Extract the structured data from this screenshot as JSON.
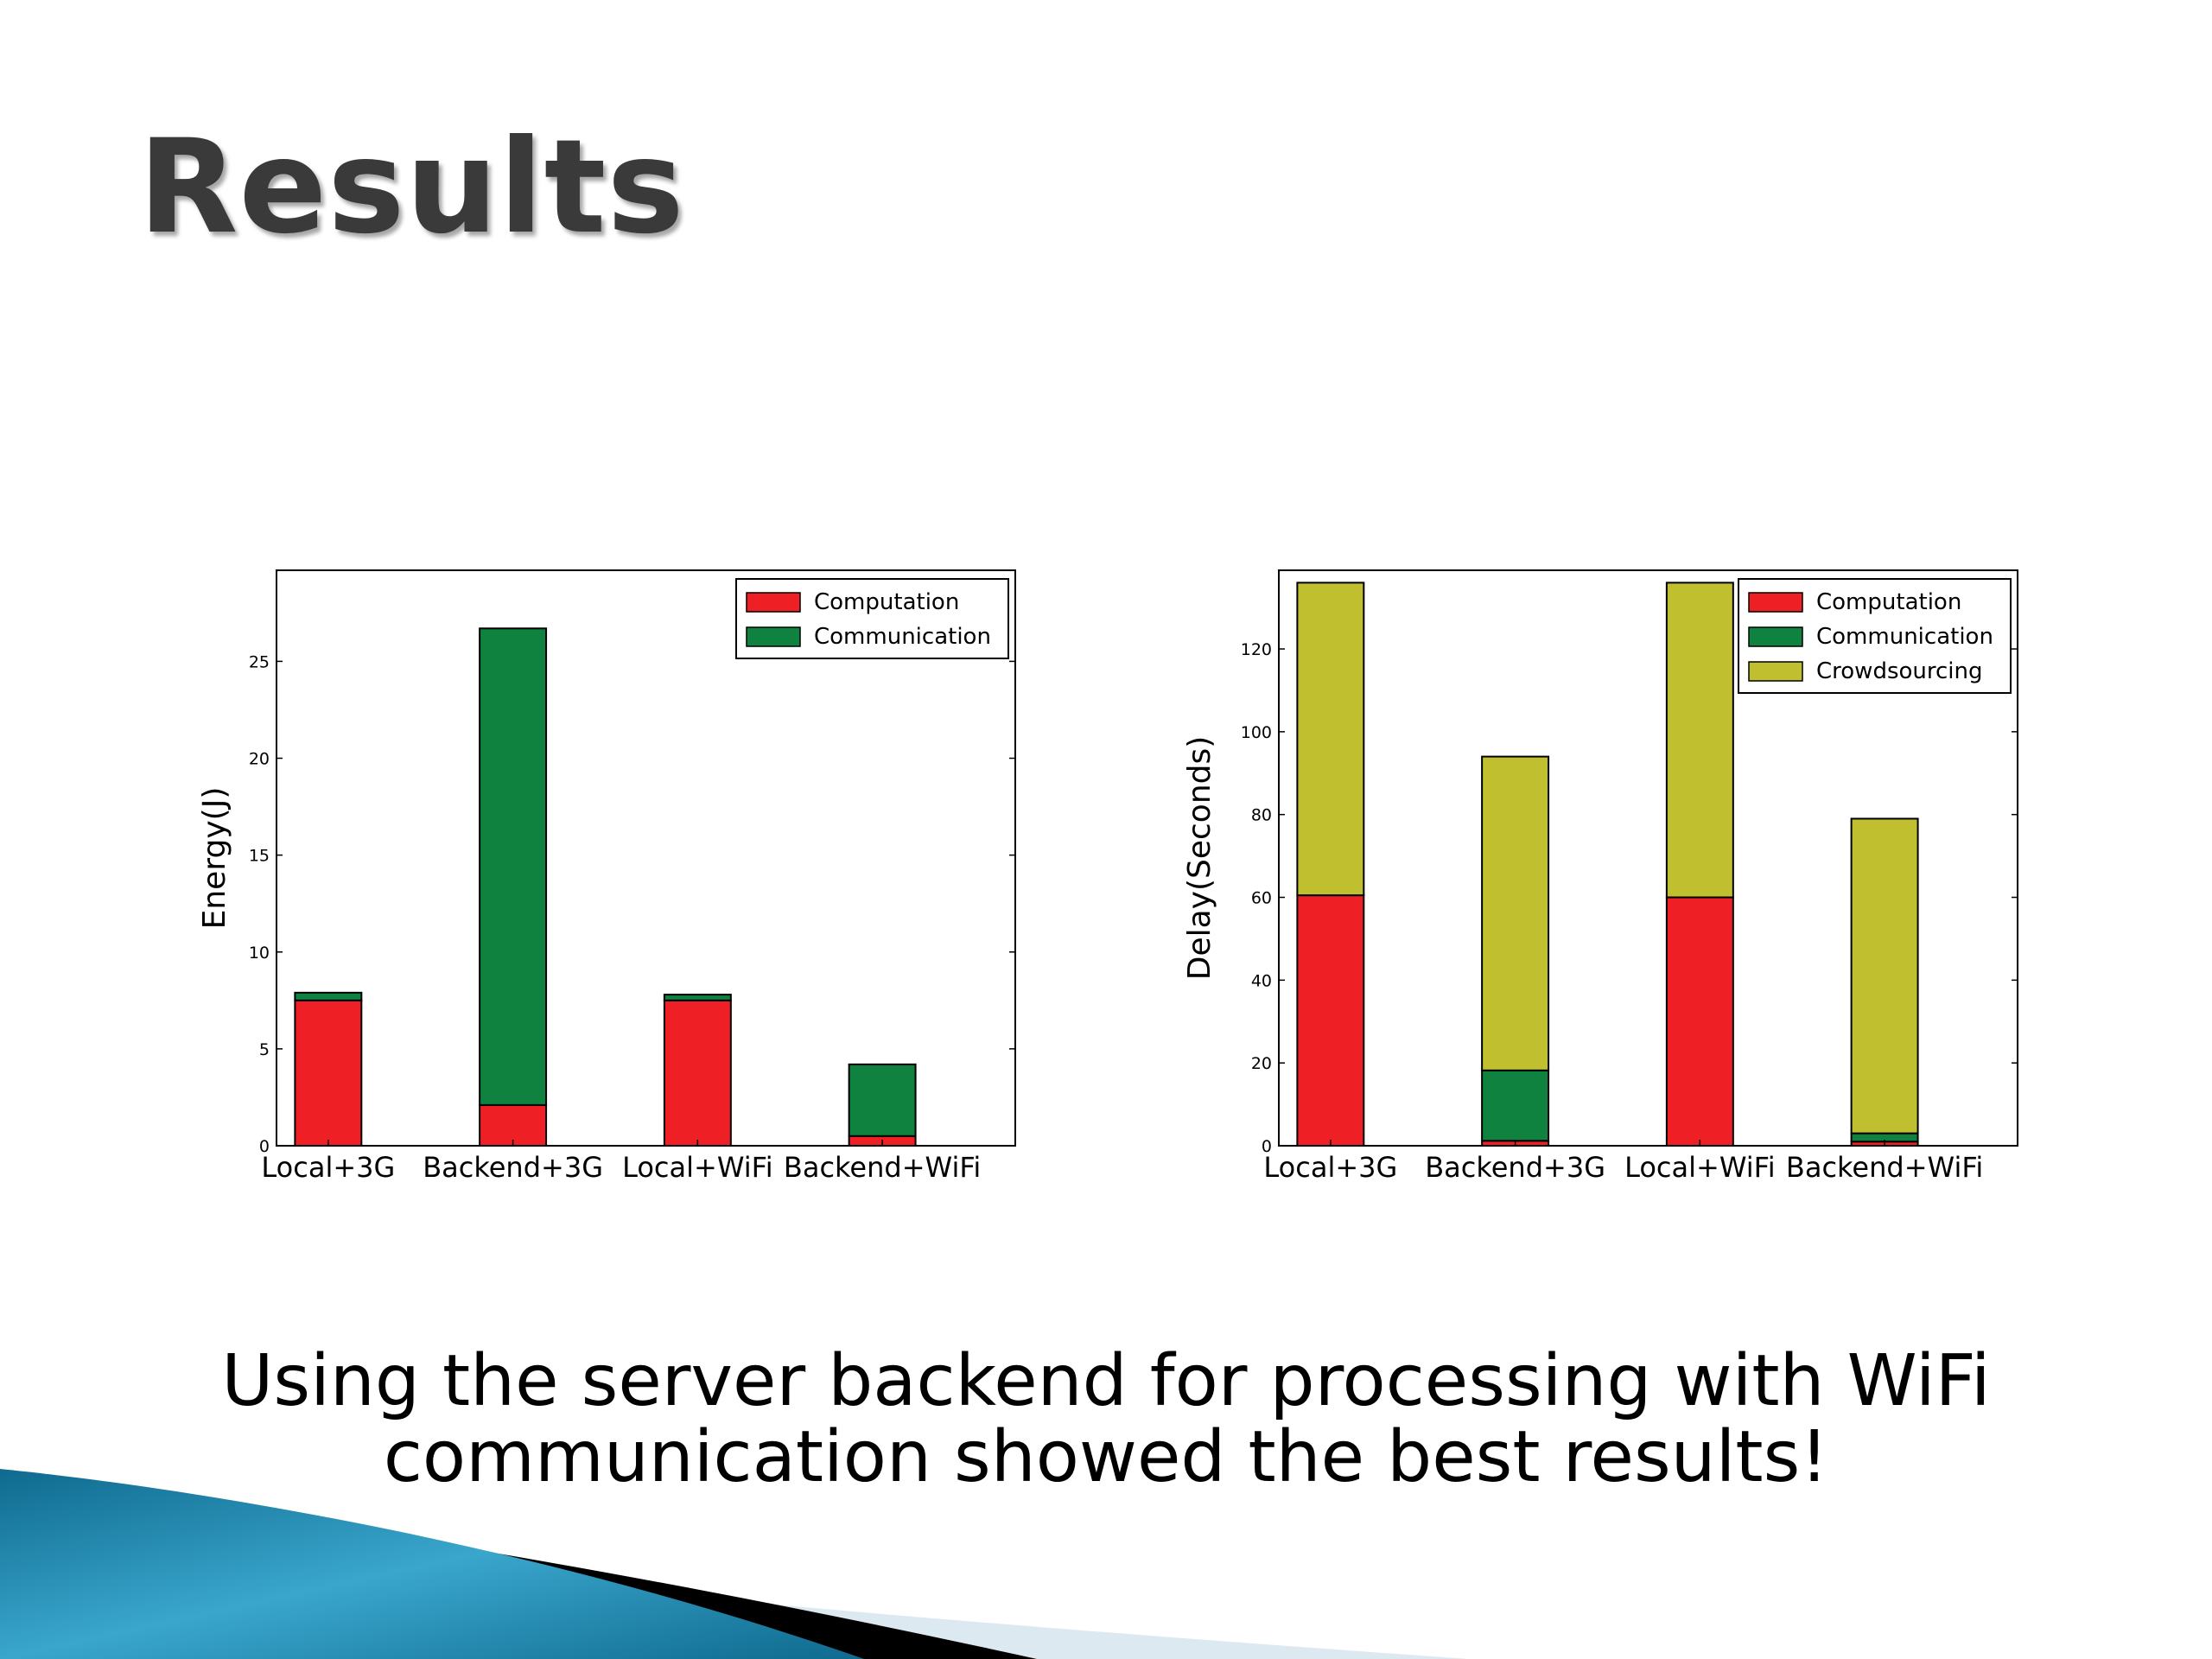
{
  "slide": {
    "title": "Results",
    "caption_line1": "Using the server backend for processing with WiFi",
    "caption_line2": "communication showed the best results!"
  },
  "colors": {
    "computation": "#ee1f25",
    "communication": "#0e823e",
    "crowdsourcing": "#bfbf30",
    "title": "#3a3a3a",
    "accent_blue": "#1e7fa6"
  },
  "chart_data": [
    {
      "type": "bar",
      "stacked": true,
      "categories": [
        "Local+3G",
        "Backend+3G",
        "Local+WiFi",
        "Backend+WiFi"
      ],
      "series": [
        {
          "name": "Computation",
          "values": [
            7.5,
            2.1,
            7.5,
            0.5
          ]
        },
        {
          "name": "Communication",
          "values": [
            0.4,
            24.6,
            0.3,
            3.7
          ]
        }
      ],
      "ylabel": "Energy(J)",
      "xlabel": "",
      "ylim": [
        0,
        29.7
      ],
      "yticks": [
        0,
        5,
        10,
        15,
        20,
        25
      ],
      "legend": "top-right",
      "grid": false
    },
    {
      "type": "bar",
      "stacked": true,
      "categories": [
        "Local+3G",
        "Backend+3G",
        "Local+WiFi",
        "Backend+WiFi"
      ],
      "series": [
        {
          "name": "Computation",
          "values": [
            60.5,
            1.2,
            60,
            1
          ]
        },
        {
          "name": "Communication",
          "values": [
            0,
            17,
            0,
            2
          ]
        },
        {
          "name": "Crowdsourcing",
          "values": [
            75.5,
            75.8,
            76,
            76
          ]
        }
      ],
      "ylabel": "Delay(Seconds)",
      "xlabel": "",
      "ylim": [
        0,
        139
      ],
      "yticks": [
        0,
        20,
        40,
        60,
        80,
        100,
        120
      ],
      "legend": "top-right",
      "grid": false
    }
  ]
}
